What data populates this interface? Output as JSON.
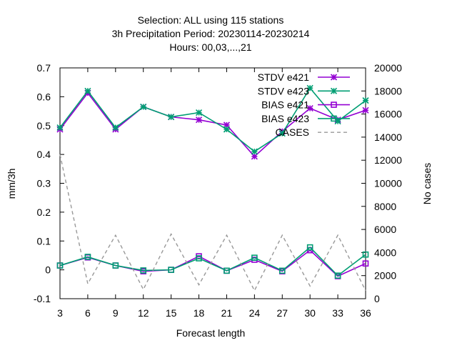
{
  "chart_data": {
    "type": "line",
    "title_lines": [
      "Selection: ALL using   115 stations",
      "3h Precipitation   Period: 20230114-20230214",
      "Hours:  00,03,...,21"
    ],
    "xlabel": "Forecast length",
    "ylabel": "mm/3h",
    "y2label": "No cases",
    "x": [
      3,
      6,
      9,
      12,
      15,
      18,
      21,
      24,
      27,
      30,
      33,
      36
    ],
    "xlim": [
      3,
      36
    ],
    "ylim": [
      -0.1,
      0.7
    ],
    "y2lim": [
      0,
      20000
    ],
    "xticks": [
      "3",
      "6",
      "9",
      "12",
      "15",
      "18",
      "21",
      "24",
      "27",
      "30",
      "33",
      "36"
    ],
    "yticks": [
      "-0.1",
      "0",
      "0.1",
      "0.2",
      "0.3",
      "0.4",
      "0.5",
      "0.6",
      "0.7"
    ],
    "y2ticks": [
      "0",
      "2000",
      "4000",
      "6000",
      "8000",
      "10000",
      "12000",
      "14000",
      "16000",
      "18000",
      "20000"
    ],
    "grid": false,
    "legend_position": "top-right",
    "series": [
      {
        "name": "STDV e421",
        "axis": "y1",
        "marker": "x-star",
        "color": "#9400d3",
        "values": [
          0.487,
          0.613,
          0.487,
          0.565,
          0.53,
          0.52,
          0.502,
          0.393,
          0.48,
          0.56,
          0.52,
          0.553
        ]
      },
      {
        "name": "STDV e423",
        "axis": "y1",
        "marker": "x-star",
        "color": "#009e73",
        "values": [
          0.493,
          0.62,
          0.493,
          0.565,
          0.53,
          0.545,
          0.487,
          0.41,
          0.473,
          0.63,
          0.515,
          0.587
        ]
      },
      {
        "name": "BIAS e421",
        "axis": "y1",
        "marker": "square",
        "color": "#9400d3",
        "values": [
          0.015,
          0.043,
          0.015,
          -0.005,
          0.0,
          0.047,
          -0.003,
          0.035,
          -0.005,
          0.068,
          -0.022,
          0.022
        ]
      },
      {
        "name": "BIAS e423",
        "axis": "y1",
        "marker": "square",
        "color": "#009e73",
        "values": [
          0.015,
          0.045,
          0.015,
          -0.002,
          0.0,
          0.04,
          -0.003,
          0.042,
          -0.003,
          0.078,
          -0.02,
          0.053
        ]
      },
      {
        "name": "CASES",
        "axis": "y2",
        "marker": "none",
        "color": "#999999",
        "dashed": true,
        "values": [
          12500,
          1300,
          5500,
          800,
          5600,
          1200,
          5500,
          700,
          5500,
          1100,
          5500,
          700
        ]
      }
    ]
  }
}
